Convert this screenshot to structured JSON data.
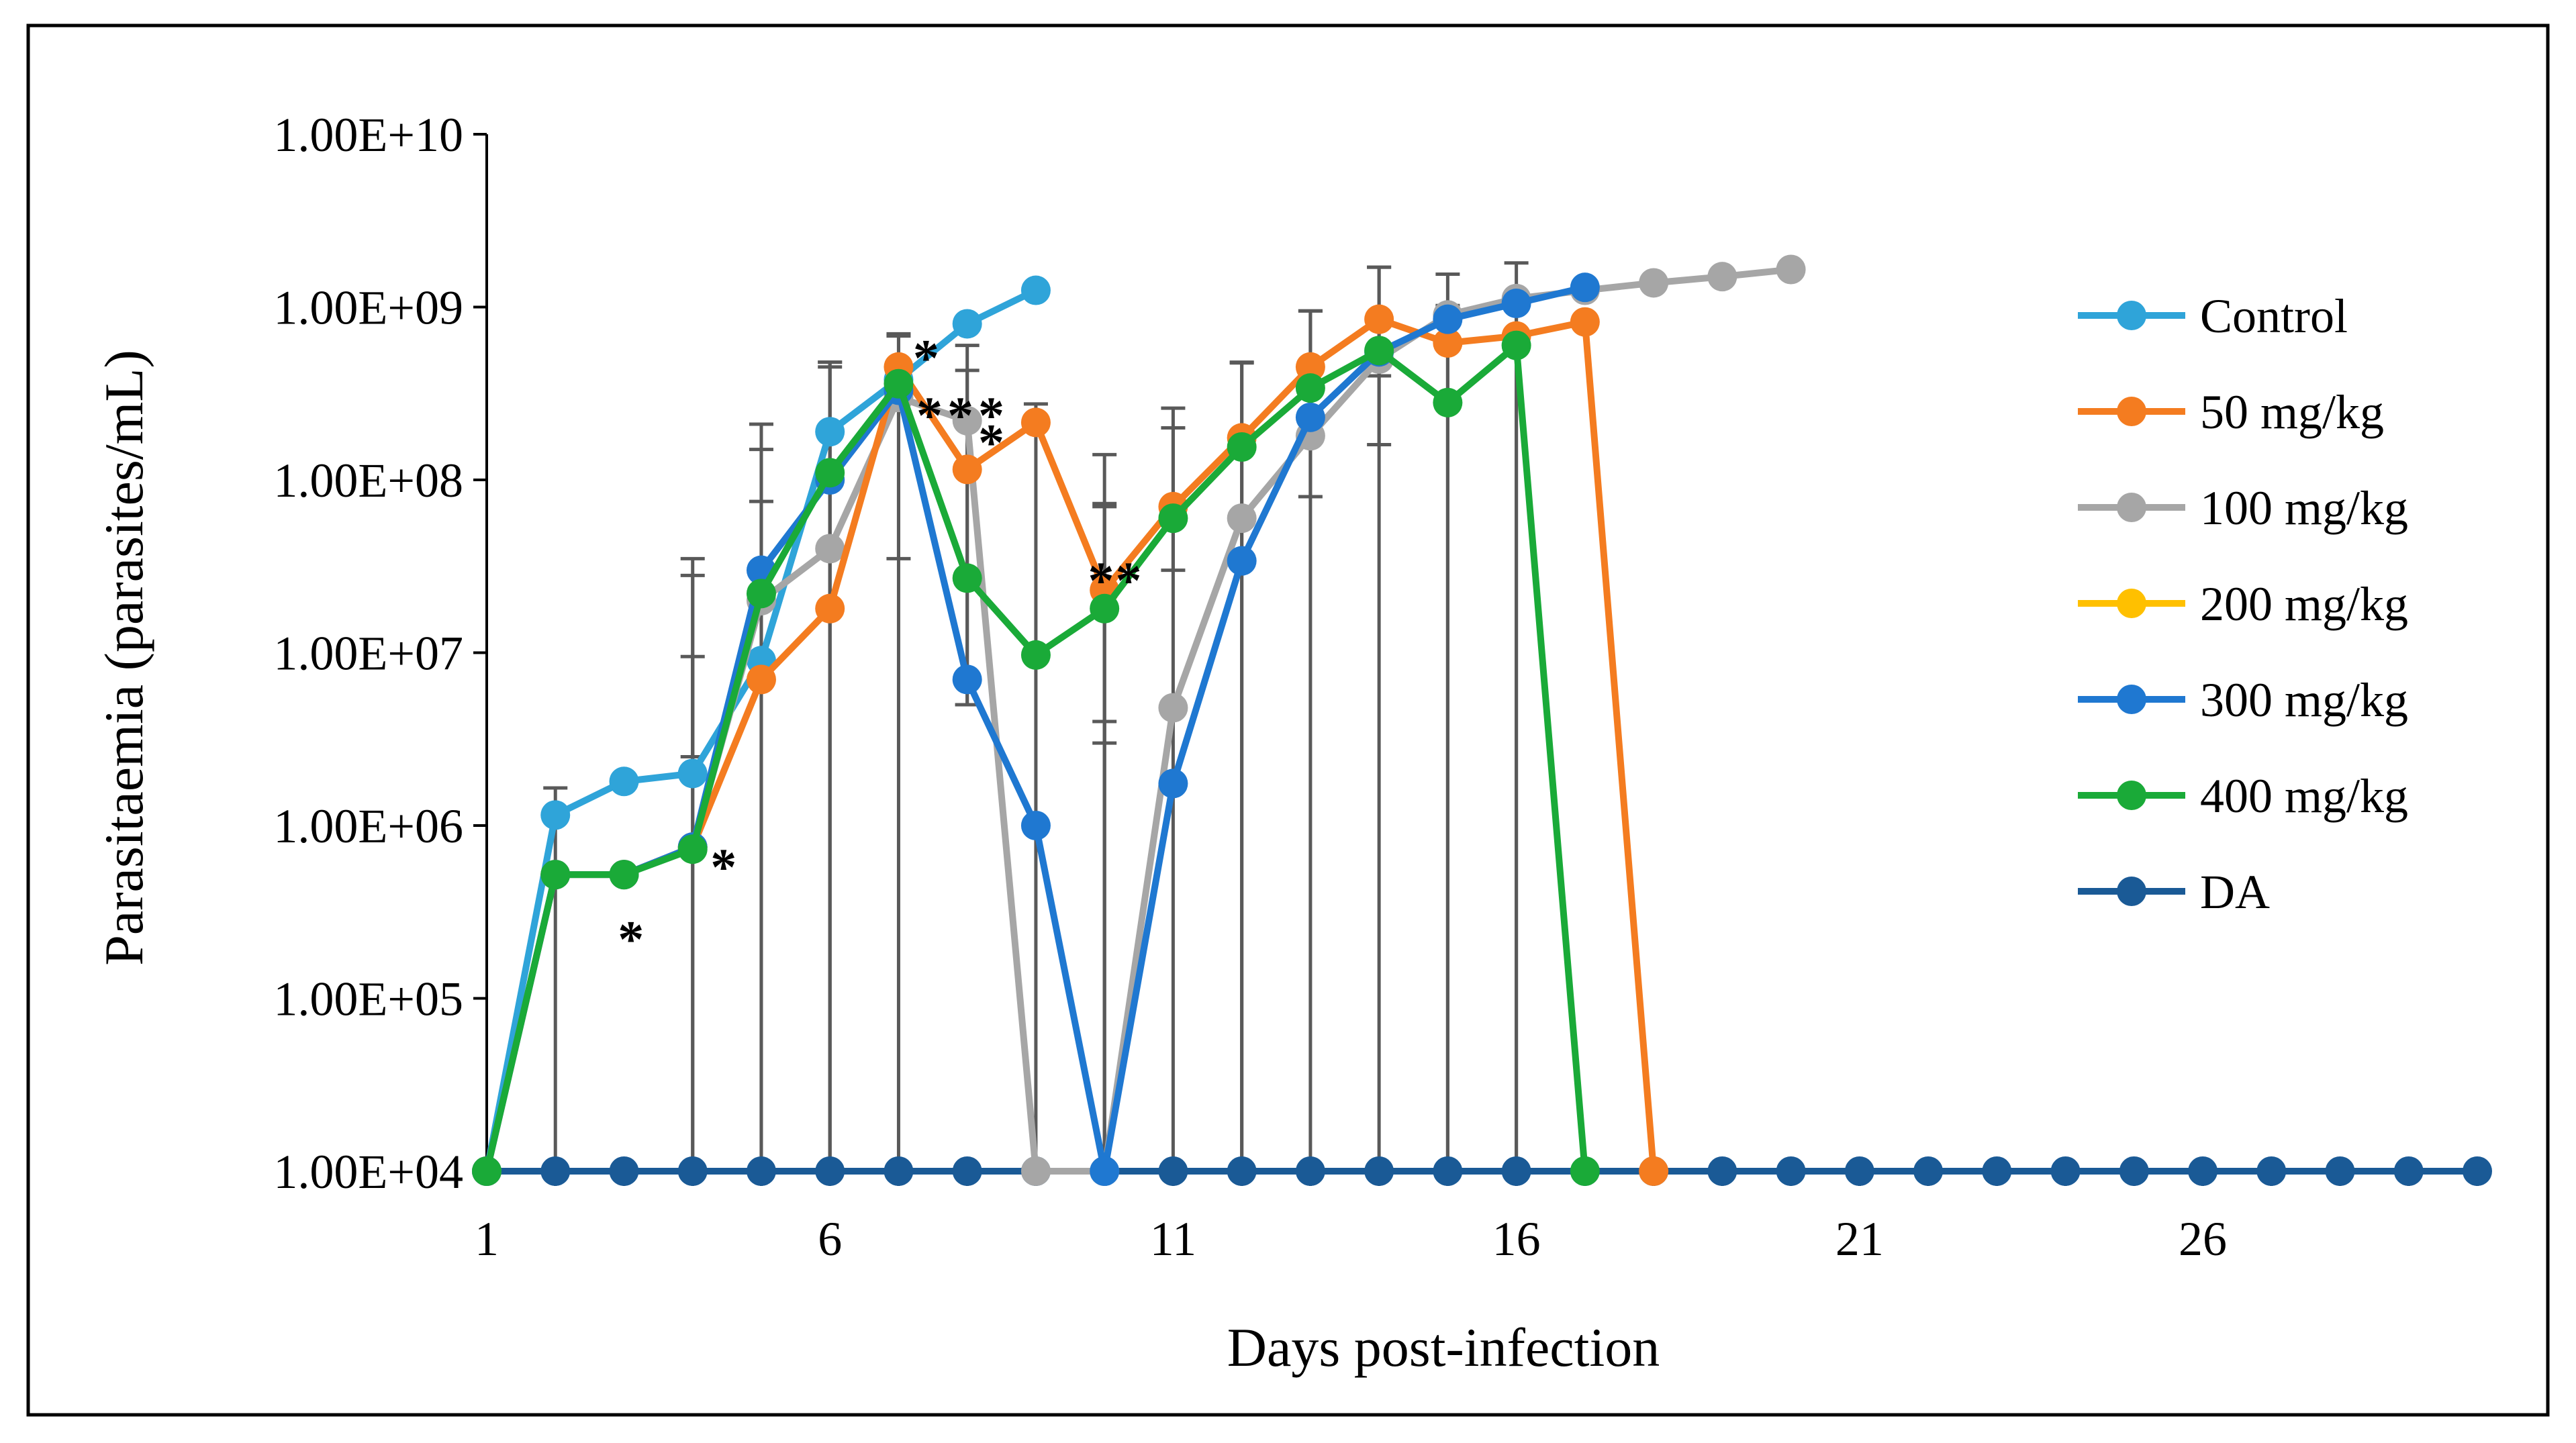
{
  "chart_data": {
    "type": "line",
    "title": "",
    "xlabel": "Days post-infection",
    "ylabel": "Parasitaemia (parasites/mL)",
    "yscale": "log",
    "ylim": [
      10000,
      10000000000
    ],
    "xlim": [
      1,
      30
    ],
    "x_ticks": [
      1,
      6,
      11,
      16,
      21,
      26
    ],
    "x_tick_labels": [
      "1",
      "6",
      "11",
      "16",
      "21",
      "26"
    ],
    "y_ticks": [
      10000,
      100000,
      1000000,
      10000000,
      100000000,
      1000000000,
      10000000000
    ],
    "y_tick_labels": [
      "1.00E+04",
      "1.00E+05",
      "1.00E+06",
      "1.00E+07",
      "1.00E+08",
      "1.00E+09",
      "1.00E+10"
    ],
    "legend_position": "right",
    "series": [
      {
        "name": "Control",
        "color": "#2fa4d9",
        "x": [
          1,
          2,
          3,
          4,
          5,
          6,
          7,
          8,
          9
        ],
        "values": [
          10000,
          1150000,
          1800000,
          2000000,
          9000000,
          190000000,
          380000000,
          800000000,
          1250000000
        ],
        "errors": [
          0,
          500000,
          0,
          0,
          0,
          290000000,
          0,
          0,
          0
        ]
      },
      {
        "name": "50 mg/kg",
        "color": "#f47c20",
        "x": [
          1,
          2,
          3,
          4,
          5,
          6,
          7,
          8,
          9,
          10,
          11,
          12,
          13,
          14,
          15,
          16,
          17,
          18
        ],
        "values": [
          10000,
          520000,
          520000,
          750000,
          7000000,
          18000000,
          450000000,
          115000000,
          215000000,
          23000000,
          70000000,
          175000000,
          450000000,
          850000000,
          620000000,
          680000000,
          820000000,
          10000
        ],
        "errors": [
          0,
          0,
          0,
          0,
          0,
          0,
          250000000,
          0,
          60000000,
          50000000,
          0,
          300000000,
          500000000,
          850000000,
          400000000,
          500000000,
          0,
          0
        ]
      },
      {
        "name": "100 mg/kg",
        "color": "#a6a6a6",
        "x": [
          1,
          2,
          3,
          4,
          5,
          6,
          7,
          8,
          9,
          10,
          11,
          12,
          13,
          14,
          15,
          16,
          17,
          18,
          19,
          20
        ],
        "values": [
          10000,
          520000,
          520000,
          750000,
          20000000,
          40000000,
          300000000,
          220000000,
          10000,
          10000,
          4800000,
          60000000,
          180000000,
          500000000,
          900000000,
          1120000000,
          1250000000,
          1380000000,
          1500000000,
          1650000000
        ],
        "errors": [
          0,
          0,
          0,
          0,
          0,
          0,
          0,
          0,
          0,
          0,
          0,
          0,
          0,
          0,
          0,
          0,
          0,
          0,
          0,
          0
        ]
      },
      {
        "name": "200 mg/kg",
        "color": "#ffc000",
        "x": [],
        "values": [],
        "errors": []
      },
      {
        "name": "300 mg/kg",
        "color": "#1f78d1",
        "x": [
          1,
          2,
          3,
          4,
          5,
          6,
          7,
          8,
          9,
          10,
          11,
          12,
          13,
          14,
          15,
          16,
          17
        ],
        "values": [
          10000,
          520000,
          520000,
          750000,
          30000000,
          100000000,
          330000000,
          7000000,
          1000000,
          10000,
          1750000,
          34000000,
          230000000,
          550000000,
          850000000,
          1050000000,
          1300000000
        ],
        "errors": [
          0,
          0,
          0,
          0,
          0,
          0,
          0,
          0,
          0,
          0,
          0,
          0,
          0,
          0,
          0,
          0,
          0
        ]
      },
      {
        "name": "400 mg/kg",
        "color": "#1aaa38",
        "x": [
          1,
          2,
          3,
          4,
          5,
          6,
          7,
          8,
          9,
          10,
          11,
          12,
          13,
          14,
          15,
          16,
          17
        ],
        "values": [
          10000,
          520000,
          520000,
          730000,
          22000000,
          110000000,
          360000000,
          27000000,
          9700000,
          18000000,
          60000000,
          155000000,
          340000000,
          560000000,
          280000000,
          600000000,
          10000
        ],
        "errors": [
          0,
          0,
          0,
          0,
          0,
          0,
          0,
          0,
          0,
          0,
          0,
          0,
          0,
          0,
          0,
          0,
          0
        ]
      },
      {
        "name": "DA",
        "color": "#1a5a96",
        "x": [
          1,
          2,
          3,
          4,
          5,
          6,
          7,
          8,
          9,
          10,
          11,
          12,
          13,
          14,
          15,
          16,
          17,
          18,
          19,
          20,
          21,
          22,
          23,
          24,
          25,
          26,
          27,
          28,
          29,
          30
        ],
        "values": [
          10000,
          10000,
          10000,
          10000,
          10000,
          10000,
          10000,
          10000,
          10000,
          10000,
          10000,
          10000,
          10000,
          10000,
          10000,
          10000,
          10000,
          10000,
          10000,
          10000,
          10000,
          10000,
          10000,
          10000,
          10000,
          10000,
          10000,
          10000,
          10000,
          10000
        ],
        "errors": []
      }
    ],
    "extra_error_bars": [
      {
        "x": 4,
        "low": 2500000,
        "high": 35000000
      },
      {
        "x": 4,
        "low": 0,
        "high": 28000000
      },
      {
        "x": 4,
        "low": 0,
        "high": 9500000
      },
      {
        "x": 5,
        "low": 0,
        "high": 210000000
      },
      {
        "x": 5,
        "low": 0,
        "high": 150000000
      },
      {
        "x": 5,
        "low": 0,
        "high": 75000000
      },
      {
        "x": 6,
        "low": 0,
        "high": 480000000
      },
      {
        "x": 6,
        "low": 0,
        "high": 450000000
      },
      {
        "x": 7,
        "low": 35000000,
        "high": 680000000
      },
      {
        "x": 8,
        "low": 5000000,
        "high": 430000000
      },
      {
        "x": 8,
        "low": 5000000,
        "high": 600000000
      },
      {
        "x": 10,
        "low": 0,
        "high": 140000000
      },
      {
        "x": 10,
        "low": 0,
        "high": 70000000
      },
      {
        "x": 10,
        "low": 3000000,
        "high": 4000000
      },
      {
        "x": 11,
        "low": 0,
        "high": 260000000
      },
      {
        "x": 11,
        "low": 30000000,
        "high": 200000000
      },
      {
        "x": 12,
        "low": 0,
        "high": 480000000
      },
      {
        "x": 13,
        "low": 80000000,
        "high": 950000000
      },
      {
        "x": 14,
        "low": 160000000,
        "high": 1700000000
      },
      {
        "x": 14,
        "low": 400000000,
        "high": 600000000
      },
      {
        "x": 15,
        "low": 0,
        "high": 1550000000
      },
      {
        "x": 16,
        "low": 0,
        "high": 1800000000
      }
    ],
    "annotations": [
      {
        "text": "*",
        "x": 3.1,
        "y": 260000
      },
      {
        "text": "*",
        "x": 4.45,
        "y": 680000
      },
      {
        "text": "*",
        "x": 7.4,
        "y": 600000000
      },
      {
        "text": "*",
        "x": 7.45,
        "y": 280000000
      },
      {
        "text": "*",
        "x": 7.9,
        "y": 280000000
      },
      {
        "text": "*",
        "x": 8.35,
        "y": 280000000
      },
      {
        "text": "*",
        "x": 8.35,
        "y": 195000000
      },
      {
        "text": "*",
        "x": 9.95,
        "y": 31000000
      },
      {
        "text": "*",
        "x": 10.35,
        "y": 31000000
      }
    ]
  }
}
